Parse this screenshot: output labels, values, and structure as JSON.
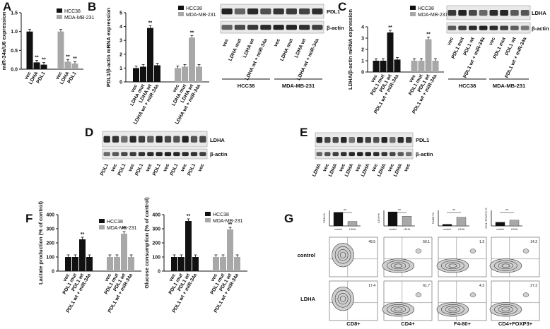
{
  "panels": {
    "A": {
      "label": "A",
      "ylabel": "miR-34a/U6 expression",
      "legend": [
        "HCC38",
        "MDA-MB-231"
      ],
      "series_colors": [
        "#111111",
        "#a8a8a8"
      ],
      "chart_data": {
        "type": "bar",
        "categories": [
          "vec",
          "LDHA",
          "PDL1"
        ],
        "series": [
          {
            "name": "HCC38",
            "values": [
              1.0,
              0.18,
              0.12
            ]
          },
          {
            "name": "MDA-MB-231",
            "values": [
              1.0,
              0.2,
              0.15
            ]
          }
        ],
        "ylim": [
          0,
          1.5
        ],
        "yticks": [
          "0.0",
          "0.5",
          "1.0",
          "1.5"
        ],
        "annotations": [
          "**",
          "**",
          "**",
          "**"
        ]
      }
    },
    "B": {
      "label": "B",
      "ylabel": "PDL1/β-actin mRNA expression",
      "legend": [
        "HCC38",
        "MDA-MB-231"
      ],
      "chart_data": {
        "type": "bar",
        "categories": [
          "vec",
          "LDHA mut",
          "LDHA wt",
          "LDHA wt + miR-34a"
        ],
        "series": [
          {
            "name": "HCC38",
            "values": [
              1.0,
              1.1,
              3.9,
              1.2
            ]
          },
          {
            "name": "MDA-MB-231",
            "values": [
              1.0,
              1.1,
              3.2,
              1.1
            ]
          }
        ],
        "ylim": [
          0,
          5
        ],
        "yticks": [
          "0",
          "1",
          "2",
          "3",
          "4",
          "5"
        ],
        "annotations": [
          "**",
          "**"
        ]
      },
      "blot": {
        "bands": [
          "PDL1",
          "β-actin"
        ],
        "lanes": [
          "vec",
          "LDHA mut",
          "LDHA wt",
          "LDHA wt + miR-34a",
          "vec",
          "LDHA mut",
          "LDHA wt",
          "LDHA wt + miR-34a"
        ],
        "groups": [
          "HCC38",
          "MDA-MB-231"
        ]
      }
    },
    "C": {
      "label": "C",
      "ylabel": "LDHA/β-actin mRNA expression",
      "legend": [
        "HCC38",
        "MDA-MB-231"
      ],
      "chart_data": {
        "type": "bar",
        "categories": [
          "vec",
          "PDL1 mut",
          "PDL1 wt",
          "PDL1 wt + miR-34a"
        ],
        "series": [
          {
            "name": "HCC38",
            "values": [
              1.0,
              1.0,
              3.5,
              1.1
            ]
          },
          {
            "name": "MDA-MB-231",
            "values": [
              1.0,
              1.0,
              2.9,
              1.0
            ]
          }
        ],
        "ylim": [
          0,
          4
        ],
        "yticks": [
          "0",
          "1",
          "2",
          "3",
          "4"
        ],
        "annotations": [
          "**",
          "**"
        ]
      },
      "blot": {
        "bands": [
          "LDHA",
          "β-actin"
        ],
        "lanes": [
          "vec",
          "PDL1 mut",
          "PDL1 wt",
          "PDL1 wt + miR-34a",
          "vec",
          "PDL1 mut",
          "PDL1 wt",
          "PDL1 wt + miR-34a"
        ],
        "groups": [
          "HCC38",
          "MDA-MB-231"
        ]
      }
    },
    "D": {
      "label": "D",
      "bands": [
        "LDHA",
        "β-actin"
      ],
      "lanes": [
        "PDL1",
        "vec",
        "PDL1",
        "vec",
        "PDL1",
        "vec",
        "PDL1",
        "vec",
        "PDL1",
        "vec",
        "PDL1",
        "vec"
      ]
    },
    "E": {
      "label": "E",
      "bands": [
        "PDL1",
        "β-actin"
      ],
      "lanes": [
        "LDHA",
        "vec",
        "LDHA",
        "vec",
        "LDHA",
        "vec",
        "LDHA",
        "vec",
        "LDHA",
        "vec",
        "LDHA",
        "vec"
      ]
    },
    "F": {
      "label": "F",
      "charts": [
        {
          "ylabel": "Lactate production (% of control)",
          "legend": [
            "HCC38",
            "MDA-MB-231"
          ],
          "chart_data": {
            "type": "bar",
            "categories": [
              "vec",
              "PDL1 mut",
              "PDL1 wt",
              "PDL1 wt + miR-34a"
            ],
            "series": [
              {
                "name": "HCC38",
                "values": [
                  100,
                  100,
                  225,
                  100
                ]
              },
              {
                "name": "MDA-MB-231",
                "values": [
                  100,
                  100,
                  265,
                  100
                ]
              }
            ],
            "ylim": [
              0,
              400
            ],
            "yticks": [
              "0",
              "100",
              "200",
              "300",
              "400"
            ],
            "annotations": [
              "**",
              "**"
            ]
          }
        },
        {
          "ylabel": "Glucose consumption (% of control)",
          "legend": [
            "HCC38",
            "MDA-MB-231"
          ],
          "chart_data": {
            "type": "bar",
            "categories": [
              "vec",
              "PDL1 mut",
              "PDL1 wt",
              "PDL1 wt + miR-34a"
            ],
            "series": [
              {
                "name": "HCC38",
                "values": [
                  100,
                  100,
                  355,
                  100
                ]
              },
              {
                "name": "MDA-MB-231",
                "values": [
                  100,
                  100,
                  295,
                  100
                ]
              }
            ],
            "ylim": [
              0,
              400
            ],
            "yticks": [
              "0",
              "100",
              "200",
              "300",
              "400"
            ],
            "annotations": [
              "**",
              "**"
            ]
          }
        }
      ]
    },
    "G": {
      "label": "G",
      "rows": [
        "control",
        "LDHA"
      ],
      "columns": [
        "CD8+",
        "CD4+",
        "F4-80+",
        "CD4+FOXP3+"
      ],
      "bar_groups": [
        "control",
        "LDHA"
      ],
      "bar_values": [
        [
          66,
          22
        ],
        [
          68,
          47
        ],
        [
          8,
          42
        ],
        [
          18,
          28
        ]
      ],
      "bar_ylabels": [
        "CD8+%",
        "CD4+%",
        "F4/80+%",
        "CD4+FOXP3+%"
      ],
      "quadrant_values": [
        [
          "49.5",
          "50.1",
          "1.3",
          "14.2"
        ],
        [
          "17.4",
          "61.7",
          "4.3",
          "27.3"
        ]
      ]
    }
  }
}
